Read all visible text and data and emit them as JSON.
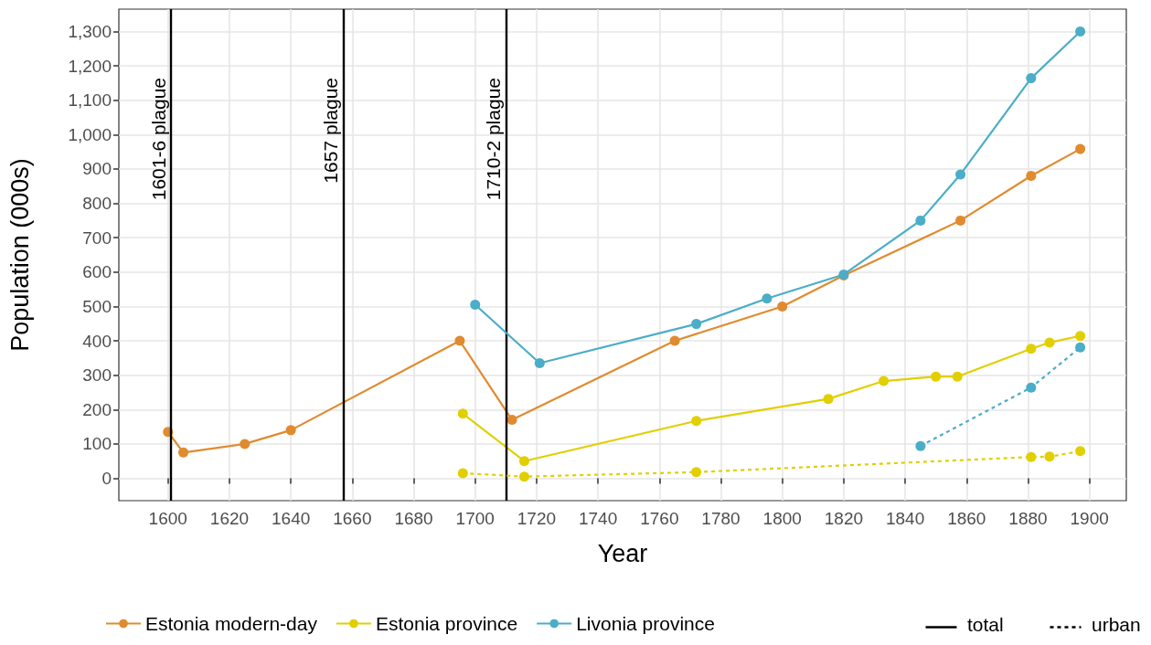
{
  "chart_data": {
    "type": "line",
    "xlabel": "Year",
    "ylabel": "Population (000s)",
    "xlim": [
      1584,
      1912
    ],
    "xticks": [
      1600,
      1620,
      1640,
      1660,
      1680,
      1700,
      1720,
      1740,
      1760,
      1780,
      1800,
      1820,
      1840,
      1860,
      1880,
      1900
    ],
    "ylim": [
      -65,
      1365
    ],
    "yticks": [
      0,
      100,
      200,
      300,
      400,
      500,
      600,
      700,
      800,
      900,
      {
        "value": 1000,
        "label": "1,000"
      },
      {
        "value": 1100,
        "label": "1,100"
      },
      {
        "value": 1200,
        "label": "1,200"
      },
      {
        "value": 1300,
        "label": "1,300"
      }
    ],
    "grid": true,
    "legend": "bottom",
    "marker": "circle",
    "series": [
      {
        "name": "Estonia modern-day",
        "color": "#e08b2f",
        "line_style": "solid",
        "x": [
          1600,
          1605,
          1625,
          1640,
          1695,
          1712,
          1765,
          1800,
          1820,
          1858,
          1881,
          1897
        ],
        "values": [
          135,
          75,
          100,
          140,
          400,
          170,
          400,
          500,
          590,
          750,
          880,
          958
        ]
      },
      {
        "name": "Estonia province",
        "color": "#e1cf00",
        "line_style": "solid",
        "x": [
          1696,
          1716,
          1772,
          1815,
          1833,
          1850,
          1857,
          1881,
          1887,
          1897
        ],
        "values": [
          188,
          50,
          167,
          231,
          283,
          296,
          296,
          377,
          395,
          414
        ]
      },
      {
        "color": "#e1cf00",
        "line_style": "dashed",
        "x": [
          1696,
          1716,
          1772,
          1881,
          1887,
          1897
        ],
        "values": [
          15,
          5,
          18,
          62,
          63,
          79
        ]
      },
      {
        "name": "Livonia province",
        "color": "#4badc8",
        "line_style": "solid",
        "x": [
          1700,
          1721,
          1772,
          1795,
          1820,
          1845,
          1858,
          1881,
          1897
        ],
        "values": [
          505,
          335,
          449,
          523,
          593,
          750,
          884,
          1164,
          1300
        ]
      },
      {
        "color": "#4badc8",
        "line_style": "dashed",
        "x": [
          1845,
          1881,
          1897
        ],
        "values": [
          94,
          264,
          381
        ]
      }
    ],
    "ref_lines": [
      {
        "axis": "x",
        "value": 1601,
        "label": "1601-6 plague",
        "color": "#000000"
      },
      {
        "axis": "x",
        "value": 1657,
        "label": "1657 plague",
        "color": "#000000"
      },
      {
        "axis": "x",
        "value": 1710,
        "label": "1710-2 plague",
        "color": "#000000"
      }
    ],
    "annotations": [
      "total",
      "urban"
    ]
  }
}
